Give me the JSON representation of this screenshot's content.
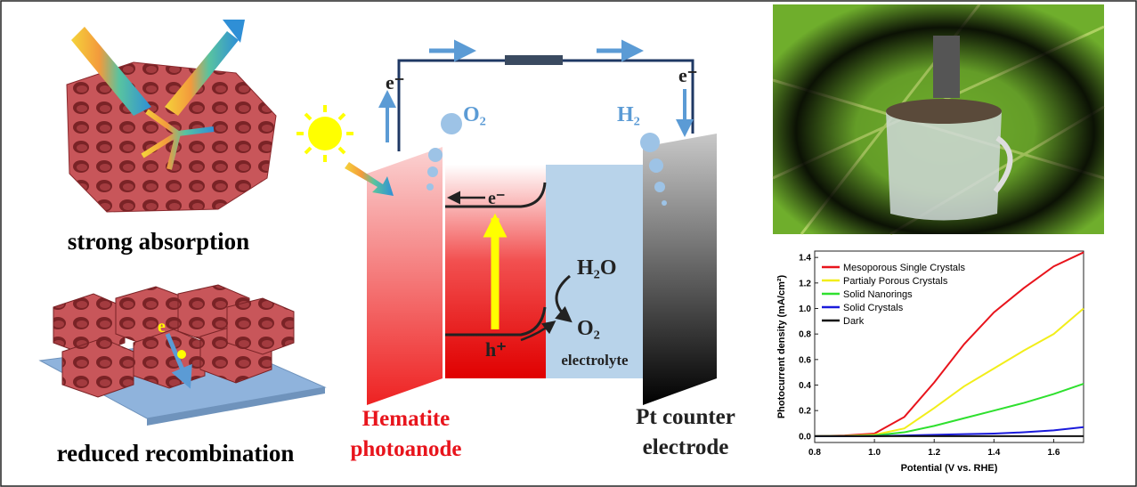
{
  "diagram": {
    "left": {
      "top_caption": "strong absorption",
      "bottom_caption": "reduced recombination",
      "electron": "e"
    },
    "cell": {
      "electron_left": "e⁻",
      "electron_right": "e⁻",
      "bubble_left": "O₂",
      "bubble_right": "H₂",
      "band_electron": "e⁻",
      "band_hole": "h⁺",
      "reactant": "H₂O",
      "product": "O₂",
      "electrolyte": "electrolyte",
      "anode_line1": "Hematite",
      "anode_line2": "photoanode",
      "cathode_line1": "Pt counter",
      "cathode_line2": "electrode"
    }
  },
  "chart_data": {
    "type": "line",
    "x_label": "Potential (V vs. RHE)",
    "y_label": "Photocurrent density (mA/cm²)",
    "x": [
      0.8,
      0.9,
      1.0,
      1.1,
      1.2,
      1.3,
      1.4,
      1.5,
      1.6,
      1.7
    ],
    "series": [
      {
        "name": "Mesoporous Single Crystals",
        "color": "#e8141c",
        "values": [
          0,
          0.005,
          0.02,
          0.15,
          0.42,
          0.72,
          0.97,
          1.16,
          1.33,
          1.44
        ]
      },
      {
        "name": "Partialy Porous Crystals",
        "color": "#f2ee1a",
        "values": [
          0,
          0.002,
          0.01,
          0.06,
          0.22,
          0.39,
          0.53,
          0.67,
          0.8,
          1.0
        ]
      },
      {
        "name": "Solid Nanorings",
        "color": "#2ee02e",
        "values": [
          0,
          0,
          0.005,
          0.03,
          0.08,
          0.14,
          0.2,
          0.26,
          0.33,
          0.41
        ]
      },
      {
        "name": "Solid Crystals",
        "color": "#1a1adb",
        "values": [
          0,
          0,
          0,
          0.005,
          0.01,
          0.015,
          0.02,
          0.03,
          0.045,
          0.07
        ]
      },
      {
        "name": "Dark",
        "color": "#111111",
        "values": [
          0,
          0,
          0,
          0,
          0,
          0,
          0,
          0,
          0,
          0
        ]
      }
    ],
    "xlim": [
      0.8,
      1.7
    ],
    "xticks": [
      0.8,
      {
        "value": 1.0,
        "label": "1.0"
      },
      1.2,
      1.4,
      1.6
    ],
    "ylim": [
      -0.05,
      1.45
    ],
    "yticks": [
      {
        "value": 0,
        "label": "0.0"
      },
      0.2,
      0.4,
      0.6,
      0.8,
      {
        "value": 1.0,
        "label": "1.0"
      },
      1.2,
      1.4
    ],
    "legend": "upper left"
  }
}
